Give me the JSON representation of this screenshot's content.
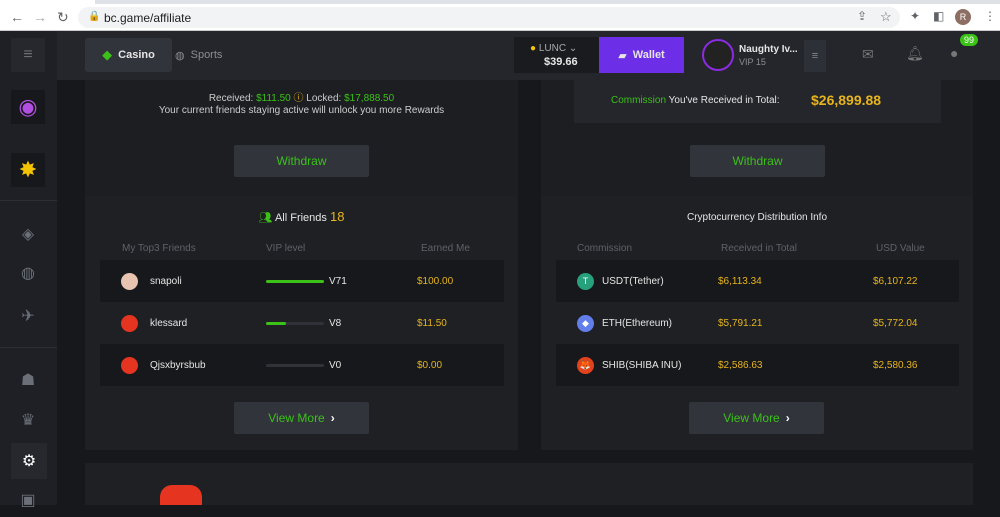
{
  "browser": {
    "url": "bc.game/affiliate",
    "profile_initial": "R"
  },
  "header": {
    "casino": "Casino",
    "sports": "Sports",
    "currency": "LUNC",
    "balance": "$39.66",
    "wallet": "Wallet",
    "username": "Naughty Iv...",
    "vip": "VIP 15",
    "chat_badge": "99"
  },
  "rewards": {
    "received_label": "Received:",
    "received": "$111.50",
    "locked_label": "Locked:",
    "locked": "$17,888.50",
    "note": "Your current friends staying active will unlock you more Rewards",
    "withdraw": "Withdraw",
    "friends_title": "All Friends",
    "friends_count": "18",
    "columns": [
      "My Top3 Friends",
      "VIP level",
      "Earned Me"
    ],
    "friends": [
      {
        "name": "snapoli",
        "vip": "V71",
        "progress": 1.0,
        "earned": "$100.00"
      },
      {
        "name": "klessard",
        "vip": "V8",
        "progress": 0.35,
        "earned": "$11.50"
      },
      {
        "name": "Qjsxbyrsbub",
        "vip": "V0",
        "progress": 0,
        "earned": "$0.00"
      }
    ],
    "view_more": "View More"
  },
  "commission": {
    "label_green": "Commission",
    "label_rest": "You've Received in Total:",
    "total": "$26,899.88",
    "withdraw": "Withdraw",
    "title": "Cryptocurrency Distribution Info",
    "columns": [
      "Commission",
      "Received in Total",
      "USD Value"
    ],
    "rows": [
      {
        "coin": "USDT(Tether)",
        "received": "$6,113.34",
        "usd": "$6,107.22",
        "color": "#26a17b",
        "glyph": "T"
      },
      {
        "coin": "ETH(Ethereum)",
        "received": "$5,791.21",
        "usd": "$5,772.04",
        "color": "#627eea",
        "glyph": "◆"
      },
      {
        "coin": "SHIB(SHIBA INU)",
        "received": "$2,586.63",
        "usd": "$2,580.36",
        "color": "#e2431c",
        "glyph": "🦊"
      }
    ],
    "view_more": "View More"
  }
}
